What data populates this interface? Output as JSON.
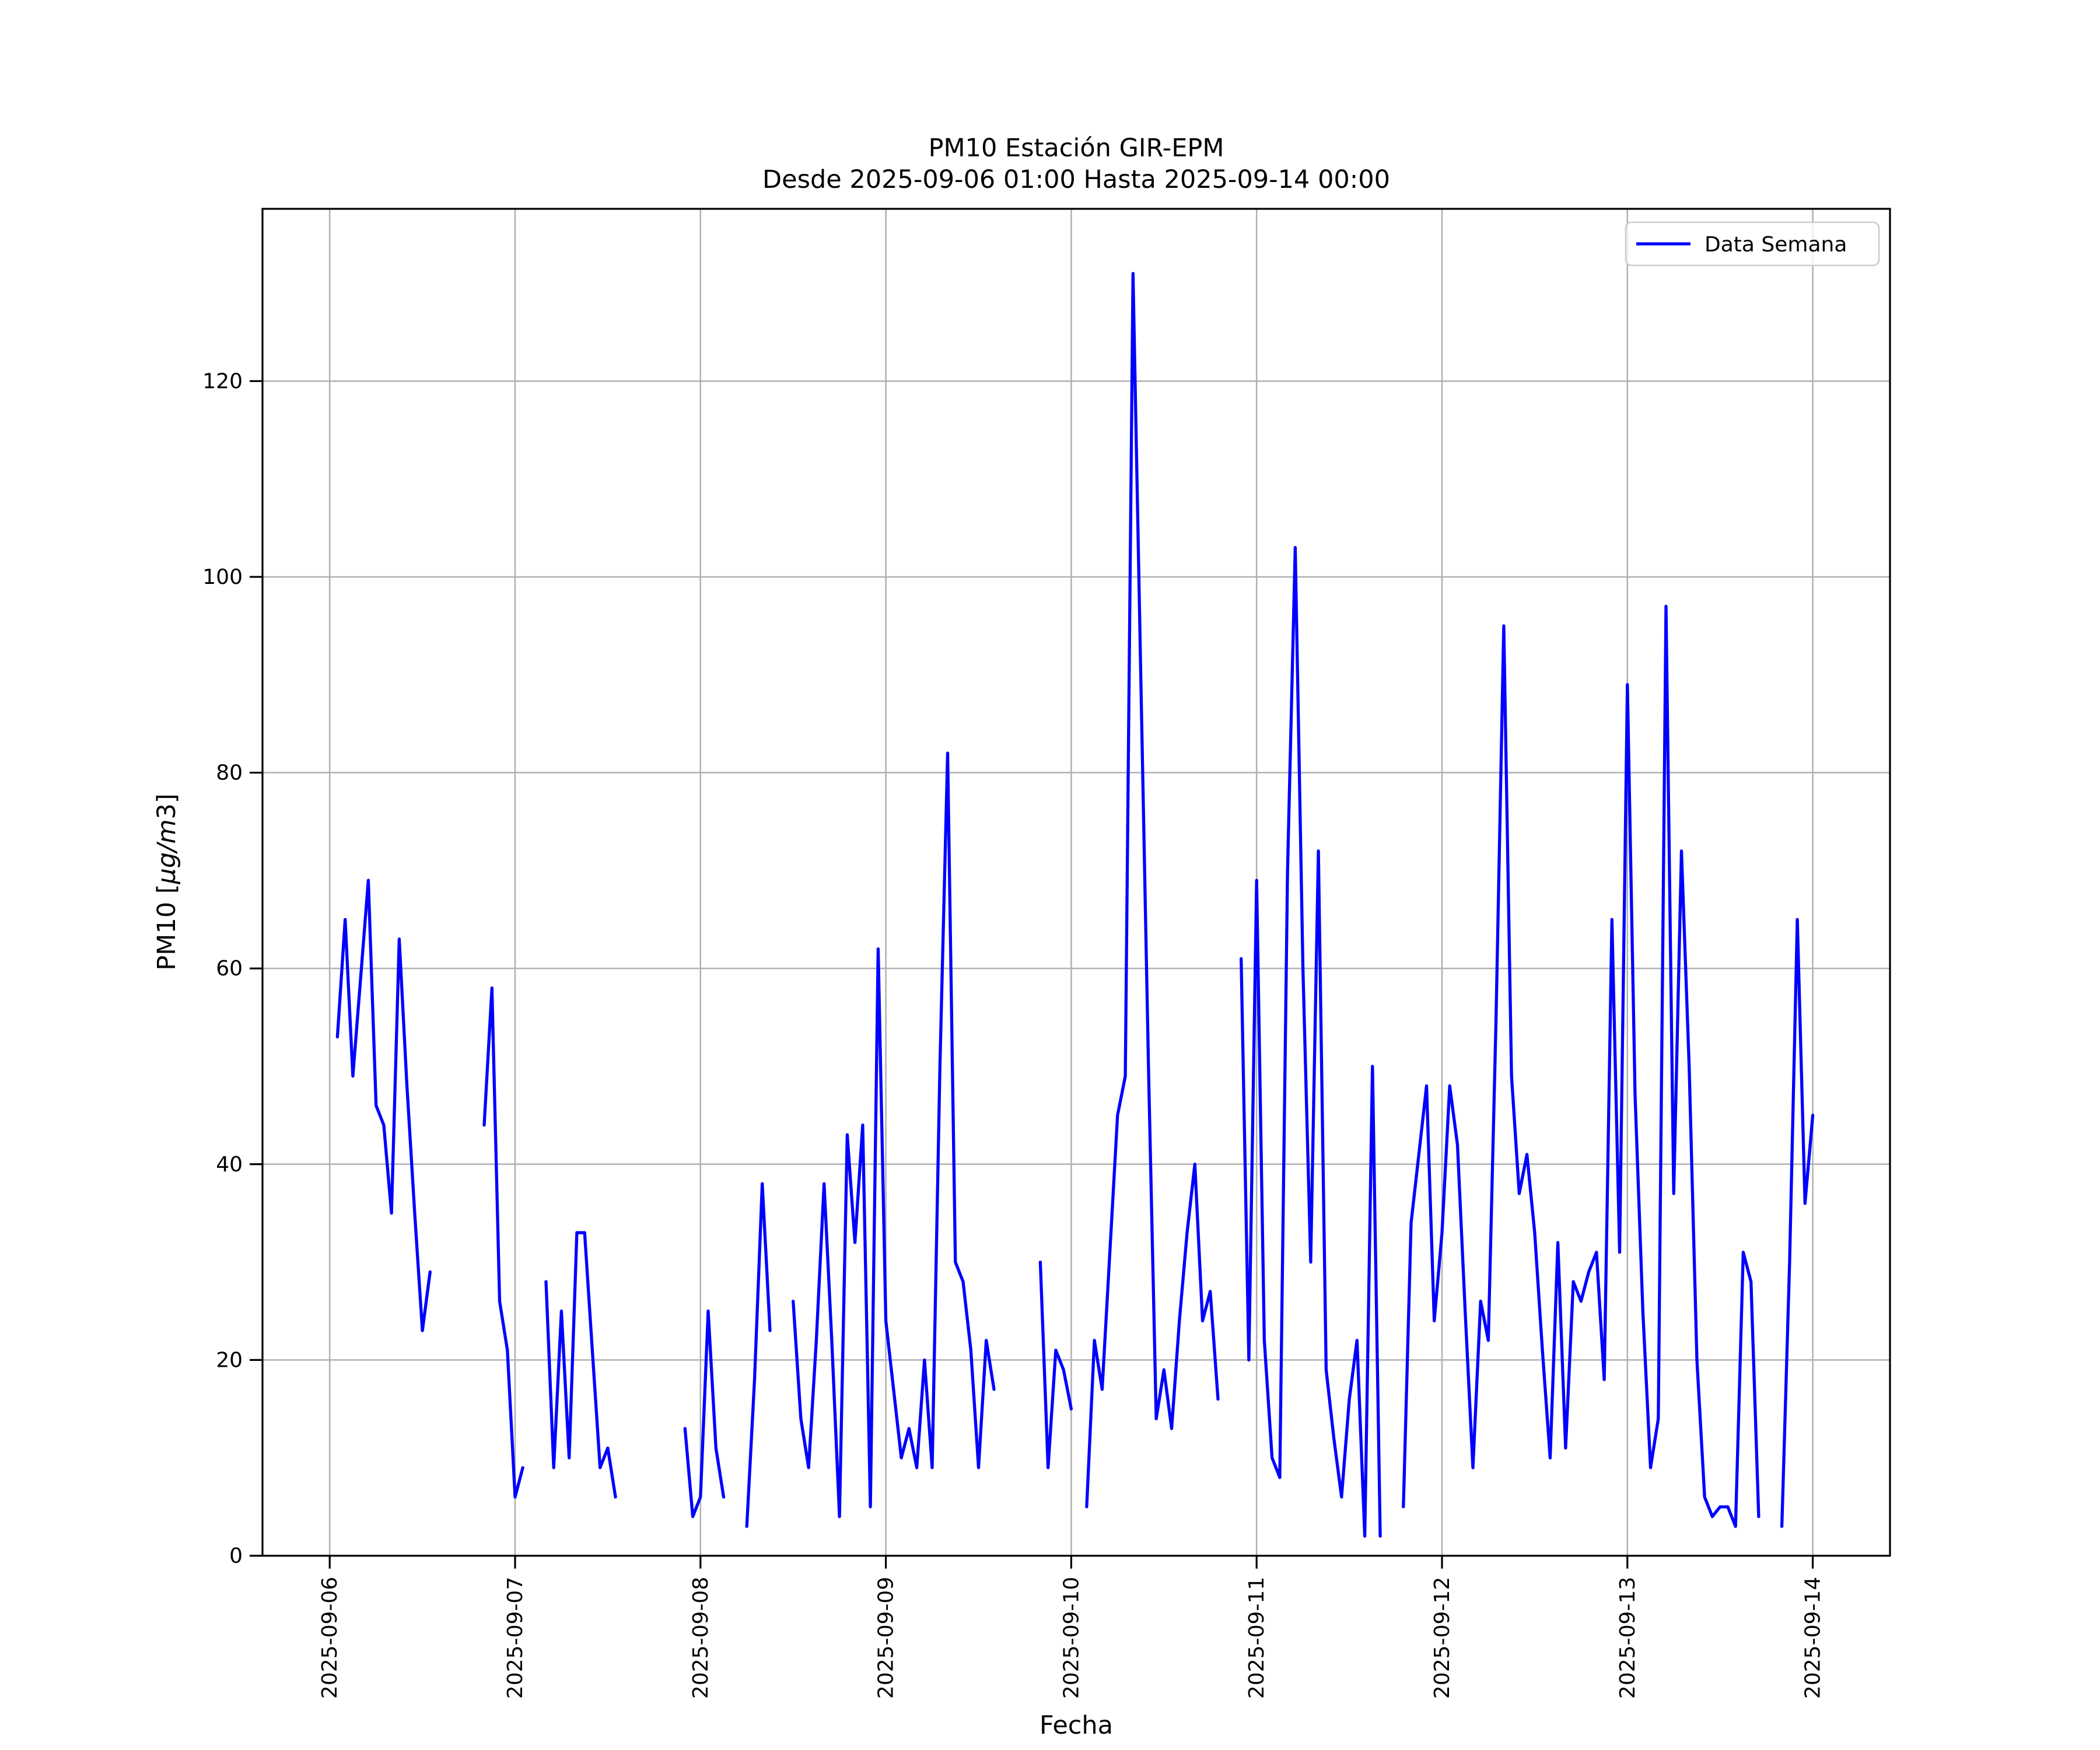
{
  "title": {
    "line1": "PM10 Estación GIR-EPM",
    "line2": "Desde 2025-09-06 01:00 Hasta 2025-09-14 00:00"
  },
  "legend": {
    "label": "Data Semana",
    "position": "upper right"
  },
  "axes": {
    "xlabel": "Fecha",
    "ylabel": "PM10 [μg/m3]",
    "ylabel_parts": [
      {
        "text": "PM10 [",
        "italic": false
      },
      {
        "text": "μg/m",
        "italic": true
      },
      {
        "text": "3",
        "italic": false
      },
      {
        "text": "]",
        "italic": false
      }
    ]
  },
  "chart_data": {
    "type": "line",
    "title": "PM10 Estación GIR-EPM\nDesde 2025-09-06 01:00 Hasta 2025-09-14 00:00",
    "xlabel": "Fecha",
    "ylabel": "PM10 [μg/m3]",
    "grid": true,
    "grid_color": "#b0b0b0",
    "line_color": "#0000ff",
    "line_width": 5.3,
    "legend_entries": [
      "Data Semana"
    ],
    "legend_position": "upper right",
    "x_tick_labels": [
      "2025-09-06",
      "2025-09-07",
      "2025-09-08",
      "2025-09-09",
      "2025-09-10",
      "2025-09-11",
      "2025-09-12",
      "2025-09-13",
      "2025-09-14"
    ],
    "x_tick_day_offsets": [
      0,
      1,
      2,
      3,
      4,
      5,
      6,
      7,
      8
    ],
    "y_ticks": [
      0,
      20,
      40,
      60,
      80,
      100,
      120
    ],
    "ylim": [
      0,
      137.6
    ],
    "xlim_hours": [
      -8.7,
      202.0
    ],
    "series_start": "2025-09-06 01:00",
    "step_hours": 1,
    "values": [
      53,
      65,
      49,
      59,
      69,
      46,
      44,
      35,
      63,
      48,
      35,
      23,
      29,
      null,
      null,
      null,
      null,
      null,
      null,
      44,
      58,
      26,
      21,
      6,
      9,
      null,
      null,
      28,
      9,
      25,
      10,
      33,
      33,
      21,
      9,
      11,
      6,
      null,
      null,
      null,
      null,
      null,
      null,
      null,
      null,
      13,
      4,
      6,
      25,
      11,
      6,
      null,
      null,
      3,
      18,
      38,
      23,
      null,
      null,
      26,
      14,
      9,
      22,
      38,
      22,
      4,
      43,
      32,
      44,
      5,
      62,
      24,
      17,
      10,
      13,
      9,
      20,
      9,
      50,
      82,
      30,
      28,
      21,
      9,
      22,
      17,
      null,
      null,
      null,
      null,
      null,
      30,
      9,
      21,
      19,
      15,
      null,
      5,
      22,
      17,
      31,
      45,
      49,
      131,
      90,
      50,
      14,
      19,
      13,
      24,
      33,
      40,
      24,
      27,
      16,
      null,
      null,
      61,
      20,
      69,
      22,
      10,
      8,
      70,
      103,
      60,
      30,
      72,
      19,
      12,
      6,
      16,
      22,
      2,
      50,
      2,
      null,
      null,
      5,
      34,
      41,
      48,
      24,
      33,
      48,
      42,
      25,
      9,
      26,
      22,
      55,
      95,
      49,
      37,
      41,
      33,
      21,
      10,
      32,
      11,
      28,
      26,
      29,
      31,
      18,
      65,
      31,
      89,
      47,
      25,
      9,
      14,
      97,
      37,
      72,
      50,
      20,
      6,
      4,
      5,
      5,
      3,
      31,
      28,
      4,
      null,
      null,
      3,
      30,
      65,
      36,
      45
    ]
  }
}
